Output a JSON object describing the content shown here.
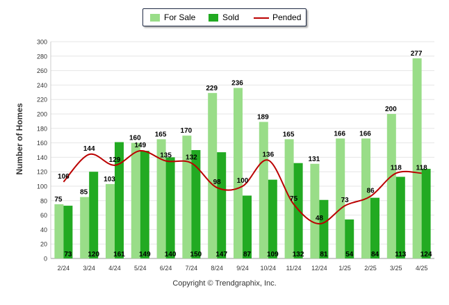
{
  "chart_data": {
    "type": "bar",
    "ylabel": "Number of Homes",
    "ylim": [
      0,
      300
    ],
    "yticks": [
      0,
      20,
      40,
      60,
      80,
      100,
      120,
      140,
      160,
      180,
      200,
      220,
      240,
      260,
      280,
      300
    ],
    "grid": true,
    "legend_position": "top-center",
    "categories": [
      "2/24",
      "3/24",
      "4/24",
      "5/24",
      "6/24",
      "7/24",
      "8/24",
      "9/24",
      "10/24",
      "11/24",
      "12/24",
      "1/25",
      "2/25",
      "3/25",
      "4/25"
    ],
    "series": [
      {
        "name": "For Sale",
        "kind": "bar",
        "color": "#99dd88",
        "values": [
          75,
          85,
          103,
          160,
          165,
          170,
          229,
          236,
          189,
          165,
          131,
          166,
          166,
          200,
          277
        ]
      },
      {
        "name": "Sold",
        "kind": "bar",
        "color": "#22aa22",
        "values": [
          73,
          120,
          161,
          149,
          140,
          150,
          147,
          87,
          109,
          132,
          81,
          54,
          84,
          113,
          124
        ]
      },
      {
        "name": "Pended",
        "kind": "line",
        "color": "#bb0000",
        "values": [
          106,
          144,
          129,
          149,
          135,
          132,
          98,
          100,
          136,
          75,
          48,
          73,
          86,
          118,
          118
        ]
      }
    ],
    "copyright": "Copyright © Trendgraphix, Inc."
  }
}
